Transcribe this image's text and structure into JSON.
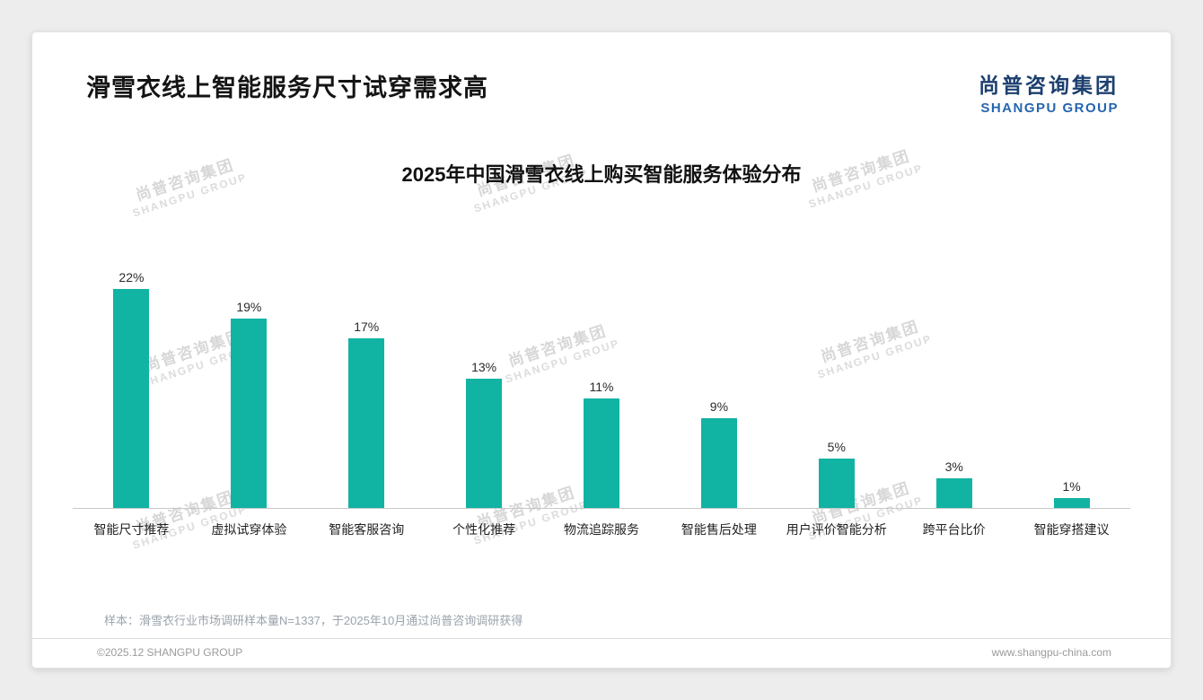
{
  "page": {
    "title": "滑雪衣线上智能服务尺寸试穿需求高",
    "sample_note": "样本：滑雪衣行业市场调研样本量N=1337，于2025年10月通过尚普咨询调研获得",
    "footer_left": "©2025.12 SHANGPU GROUP",
    "footer_right": "www.shangpu-china.com"
  },
  "brand": {
    "name_cn": "尚普咨询集团",
    "name_en": "SHANGPU GROUP",
    "color_cn": "#1c3f6e",
    "color_en": "#2565ae"
  },
  "watermark": {
    "line1": "尚普咨询集团",
    "line2": "SHANGPU GROUP"
  },
  "chart_data": {
    "type": "bar",
    "title": "2025年中国滑雪衣线上购买智能服务体验分布",
    "categories": [
      "智能尺寸推荐",
      "虚拟试穿体验",
      "智能客服咨询",
      "个性化推荐",
      "物流追踪服务",
      "智能售后处理",
      "用户评价智能分析",
      "跨平台比价",
      "智能穿搭建议"
    ],
    "values": [
      22,
      19,
      17,
      13,
      11,
      9,
      5,
      3,
      1
    ],
    "unit": "%",
    "bar_color": "#11b3a3",
    "ylim": [
      0,
      24
    ],
    "grid": false,
    "legend": "none",
    "data_labels": true
  }
}
